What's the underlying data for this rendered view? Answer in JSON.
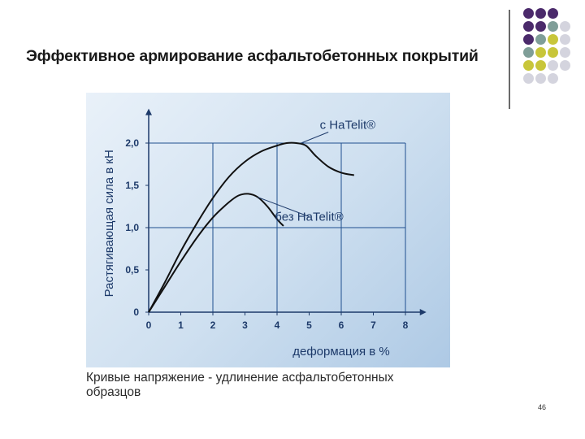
{
  "slide": {
    "title": "Эффективное армирование асфальтобетонных покрытий",
    "caption": "Кривые напряжение - удлинение асфальтобетонных образцов",
    "page_number": "46"
  },
  "decor": {
    "dot_colors": [
      "#4b2a6b",
      "#7f9e98",
      "#c8c63a",
      "#d4d4de"
    ]
  },
  "chart_data": {
    "type": "line",
    "xlabel": "деформация в %",
    "ylabel": "Растягивающая сила в кН",
    "xlim": [
      0,
      8.5
    ],
    "ylim": [
      0,
      2.4
    ],
    "x_ticks": [
      0,
      1,
      2,
      3,
      4,
      5,
      6,
      7,
      8
    ],
    "x_tick_labels": [
      "0",
      "1",
      "2",
      "3",
      "4",
      "5",
      "6",
      "7",
      "8"
    ],
    "y_ticks": [
      0,
      0.5,
      1.0,
      1.5,
      2.0
    ],
    "y_tick_labels": [
      "0",
      "0,5",
      "1,0",
      "1,5",
      "2,0"
    ],
    "grid": true,
    "series": [
      {
        "name": "с HaTelit®",
        "color": "#111111",
        "x": [
          0,
          0.5,
          1.0,
          1.5,
          2.0,
          2.5,
          3.0,
          3.5,
          4.0,
          4.3,
          4.6,
          4.9,
          5.2,
          5.6,
          6.0,
          6.4
        ],
        "y": [
          0,
          0.35,
          0.72,
          1.05,
          1.35,
          1.6,
          1.78,
          1.9,
          1.97,
          2.0,
          2.0,
          1.97,
          1.85,
          1.72,
          1.65,
          1.62
        ]
      },
      {
        "name": "без HaTelit®",
        "color": "#111111",
        "x": [
          0,
          0.5,
          1.0,
          1.5,
          2.0,
          2.5,
          2.8,
          3.1,
          3.4,
          3.7,
          4.0,
          4.2
        ],
        "y": [
          0,
          0.3,
          0.6,
          0.88,
          1.12,
          1.3,
          1.38,
          1.4,
          1.36,
          1.25,
          1.1,
          1.02
        ]
      }
    ],
    "annotations": [
      {
        "text": "с HaTelit®",
        "series": 0
      },
      {
        "text": "без HaTelit®",
        "series": 1
      }
    ]
  }
}
